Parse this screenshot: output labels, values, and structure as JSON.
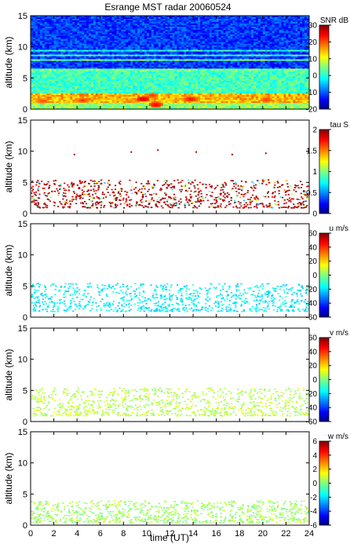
{
  "title": "Esrange MST radar 20060524",
  "xlabel": "time (UT)",
  "xlim": [
    0,
    24
  ],
  "x_ticks": [
    0,
    2,
    4,
    6,
    8,
    10,
    12,
    14,
    16,
    18,
    20,
    22,
    24
  ],
  "chart_data": [
    {
      "type": "heatmap",
      "parameter": "SNR",
      "ylabel": "altitude (km)",
      "ylim": [
        0,
        15
      ],
      "y_ticks": [
        0,
        5,
        10,
        15
      ],
      "colorbar": {
        "label": "SNR dB",
        "range": [
          -20,
          30
        ],
        "ticks": [
          -20,
          -10,
          0,
          10,
          20,
          30
        ]
      },
      "layers": [
        {
          "altitude_km": [
            0,
            1
          ],
          "level": 6,
          "time_range": [
            0,
            24
          ]
        },
        {
          "altitude_km": [
            1,
            2.5
          ],
          "level": 15,
          "time_range": [
            0,
            24
          ]
        },
        {
          "altitude_km": [
            2.5,
            6
          ],
          "level": 2,
          "time_range": [
            0,
            24
          ]
        },
        {
          "altitude_km": [
            6,
            15
          ],
          "level": -11,
          "time_range": [
            0,
            24
          ]
        }
      ],
      "bands": [
        {
          "altitude_km": 6.3,
          "level": 4
        },
        {
          "altitude_km": 7.9,
          "level": 4
        },
        {
          "altitude_km": 8.6,
          "level": 2
        },
        {
          "altitude_km": 9.4,
          "level": 0
        }
      ],
      "hotspots": [
        {
          "time": 9.7,
          "altitude_km": 1.6,
          "level": 26
        },
        {
          "time": 10.5,
          "altitude_km": 2.2,
          "level": 22
        },
        {
          "time": 10.8,
          "altitude_km": 0.7,
          "level": 25
        },
        {
          "time": 13.8,
          "altitude_km": 1.6,
          "level": 24
        },
        {
          "time": 4.5,
          "altitude_km": 1.4,
          "level": 22
        },
        {
          "time": 20.3,
          "altitude_km": 1.5,
          "level": 22
        },
        {
          "time": 1.0,
          "altitude_km": 1.3,
          "level": 21
        }
      ]
    },
    {
      "type": "heatmap",
      "parameter": "tau",
      "ylabel": "altitude (km)",
      "ylim": [
        0,
        15
      ],
      "y_ticks": [
        0,
        5,
        10,
        15
      ],
      "colorbar": {
        "label": "tau S",
        "range": [
          0,
          2
        ],
        "ticks": [
          0,
          0.5,
          1,
          1.5,
          2
        ]
      },
      "echo_layer_km": [
        1,
        5.5
      ],
      "typical_value": 1.9,
      "scatter": [
        {
          "time": 3.7,
          "altitude_km": 9.6,
          "value": 1.9
        },
        {
          "time": 8.6,
          "altitude_km": 10.0,
          "value": 1.9
        },
        {
          "time": 10.9,
          "altitude_km": 10.3,
          "value": 1.9
        },
        {
          "time": 14.2,
          "altitude_km": 10.0,
          "value": 1.9
        },
        {
          "time": 17.3,
          "altitude_km": 9.6,
          "value": 1.9
        },
        {
          "time": 20.2,
          "altitude_km": 9.8,
          "value": 1.9
        }
      ]
    },
    {
      "type": "heatmap",
      "parameter": "u",
      "ylabel": "altitude (km)",
      "ylim": [
        0,
        15
      ],
      "y_ticks": [
        0,
        5,
        10,
        15
      ],
      "colorbar": {
        "label": "u m/s",
        "range": [
          -60,
          60
        ],
        "ticks": [
          -60,
          -40,
          -20,
          0,
          20,
          40,
          60
        ]
      },
      "echo_layer_km": [
        1,
        5.5
      ],
      "typical_value": -16
    },
    {
      "type": "heatmap",
      "parameter": "v",
      "ylabel": "altitude (km)",
      "ylim": [
        0,
        15
      ],
      "y_ticks": [
        0,
        5,
        10,
        15
      ],
      "colorbar": {
        "label": "v m/s",
        "range": [
          -60,
          60
        ],
        "ticks": [
          -60,
          -40,
          -20,
          0,
          20,
          40,
          60
        ]
      },
      "echo_layer_km": [
        1,
        5.5
      ],
      "typical_value": 7
    },
    {
      "type": "heatmap",
      "parameter": "w",
      "ylabel": "altitude (km)",
      "ylim": [
        0,
        15
      ],
      "y_ticks": [
        0,
        5,
        10,
        15
      ],
      "colorbar": {
        "label": "w m/s",
        "range": [
          -6,
          6
        ],
        "ticks": [
          -6,
          -4,
          -2,
          0,
          2,
          4,
          6
        ]
      },
      "echo_layer_km": [
        0.5,
        4
      ],
      "typical_value": 0.4
    }
  ]
}
